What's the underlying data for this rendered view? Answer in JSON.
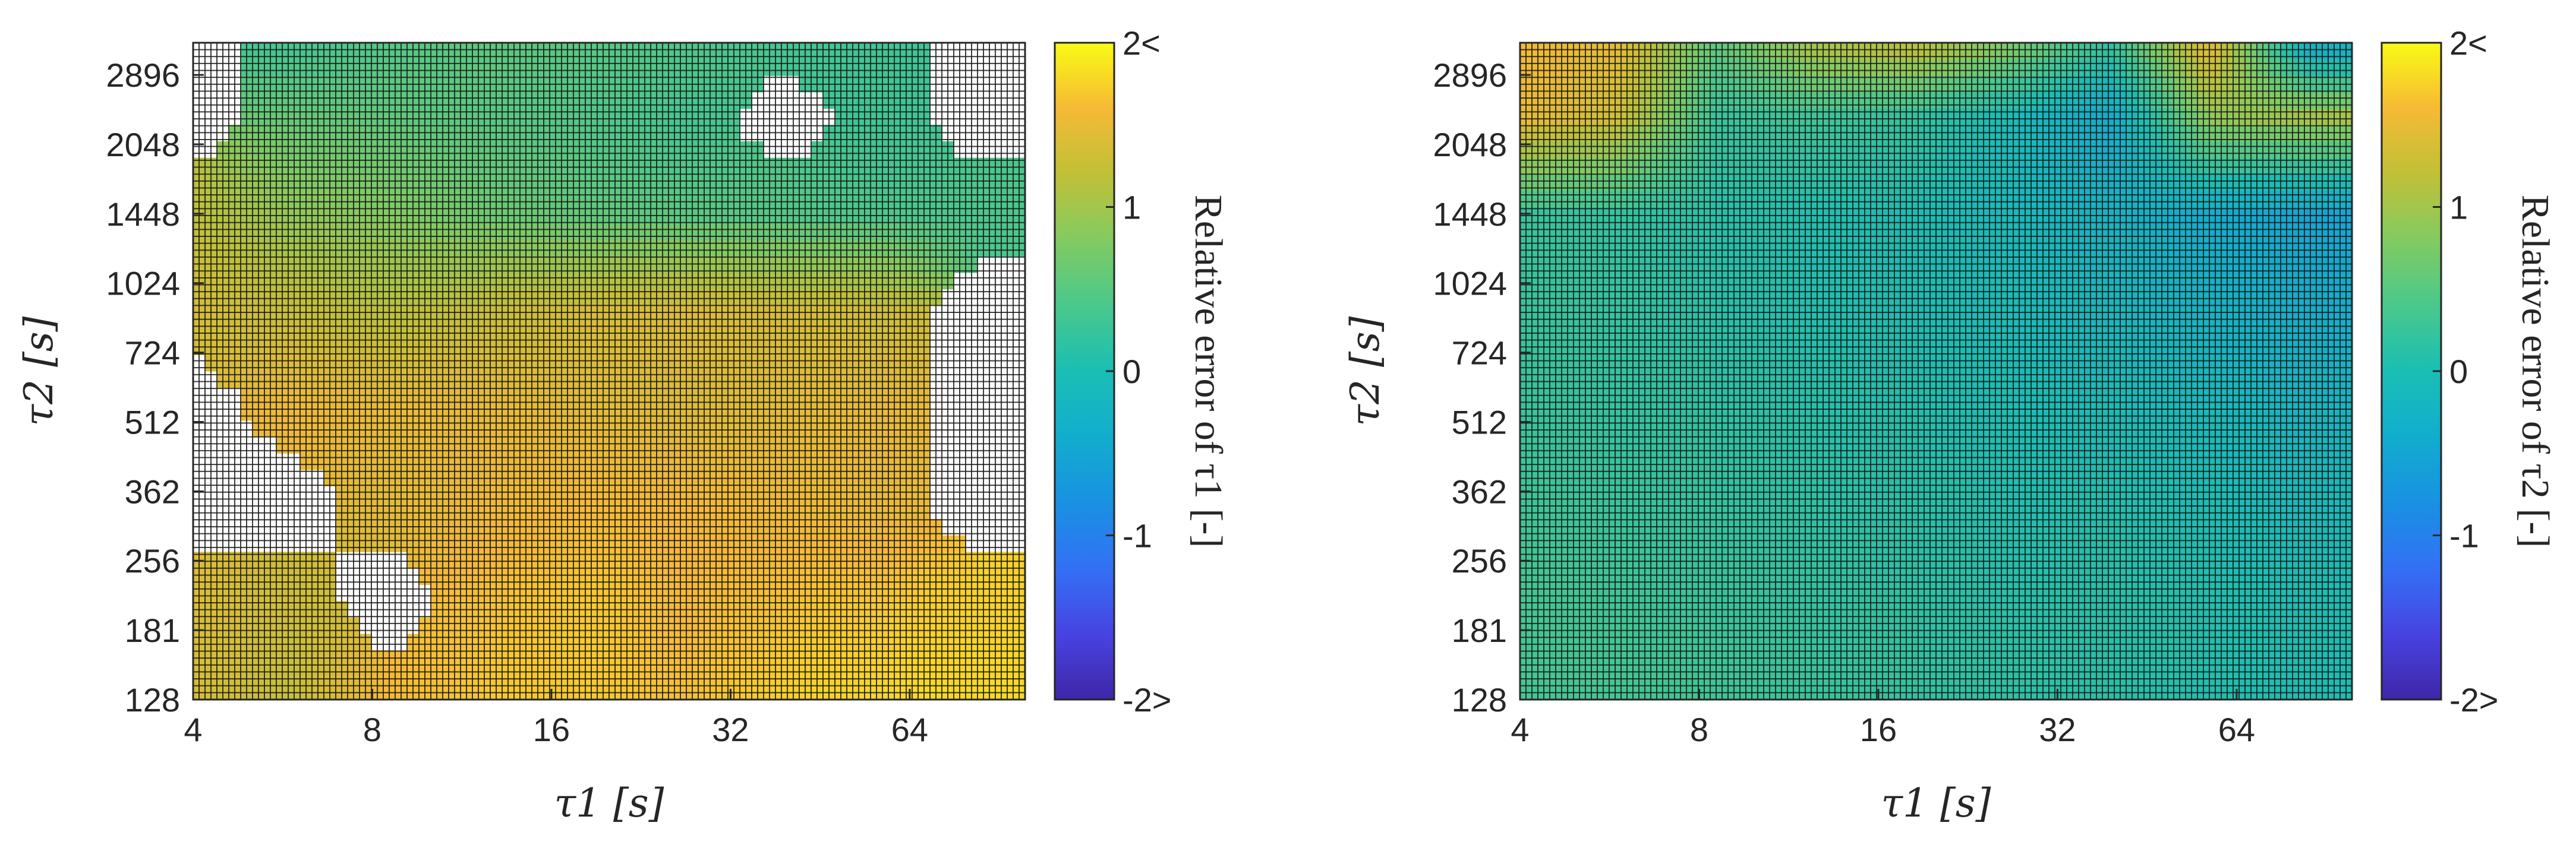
{
  "chart_data": [
    {
      "type": "heatmap",
      "panel": "left",
      "xlabel": "τ1 [s]",
      "ylabel": "τ2 [s]",
      "x_scale": "log2",
      "y_scale": "log2",
      "xlim": [
        4,
        100
      ],
      "ylim": [
        128,
        3400
      ],
      "x_ticks": [
        4,
        8,
        16,
        32,
        64
      ],
      "x_tick_labels": [
        "4",
        "8",
        "16",
        "32",
        "64"
      ],
      "y_ticks": [
        128,
        181,
        256,
        362,
        512,
        724,
        1024,
        1448,
        2048,
        2896
      ],
      "y_tick_labels": [
        "128",
        "181",
        "256",
        "362",
        "512",
        "724",
        "1024",
        "1448",
        "2048",
        "2896"
      ],
      "colorbar": {
        "label": "Relative error of τ1 [-]",
        "range": [
          -2,
          2
        ],
        "ticks": [
          2,
          1,
          0,
          -1,
          -2
        ],
        "tick_labels": [
          "2<",
          "1",
          "0",
          "-1",
          "-2>"
        ],
        "colormap": "parula"
      },
      "nan_color": "#ffffff",
      "grid_lines": true,
      "grid": {
        "log2_tau1": [
          2.0,
          2.55,
          3.1,
          3.65,
          4.2,
          4.75,
          5.3,
          5.85,
          6.4
        ],
        "log2_tau2": [
          7.0,
          7.7,
          8.4,
          9.1,
          9.8,
          10.5,
          11.2,
          11.8
        ],
        "values": [
          [
            1.35,
            1.25,
            1.6,
            1.7,
            1.7,
            1.65,
            1.75,
            1.8,
            1.8
          ],
          [
            1.4,
            1.3,
            null,
            1.65,
            1.7,
            1.6,
            1.65,
            1.7,
            1.75
          ],
          [
            null,
            null,
            1.45,
            1.55,
            1.6,
            1.6,
            1.55,
            1.5,
            null
          ],
          [
            null,
            1.55,
            1.5,
            1.5,
            1.45,
            1.4,
            1.45,
            1.5,
            null
          ],
          [
            1.35,
            1.25,
            1.15,
            1.25,
            1.35,
            1.4,
            1.35,
            1.3,
            null
          ],
          [
            1.2,
            0.9,
            0.8,
            0.65,
            0.55,
            0.5,
            0.45,
            0.4,
            0.4
          ],
          [
            null,
            0.6,
            0.55,
            0.5,
            0.45,
            0.35,
            null,
            0.3,
            null
          ],
          [
            null,
            0.3,
            0.45,
            0.55,
            0.5,
            0.45,
            0.35,
            0.3,
            null
          ]
        ]
      }
    },
    {
      "type": "heatmap",
      "panel": "right",
      "xlabel": "τ1 [s]",
      "ylabel": "τ2 [s]",
      "x_scale": "log2",
      "y_scale": "log2",
      "xlim": [
        4,
        100
      ],
      "ylim": [
        128,
        3400
      ],
      "x_ticks": [
        4,
        8,
        16,
        32,
        64
      ],
      "x_tick_labels": [
        "4",
        "8",
        "16",
        "32",
        "64"
      ],
      "y_ticks": [
        128,
        181,
        256,
        362,
        512,
        724,
        1024,
        1448,
        2048,
        2896
      ],
      "y_tick_labels": [
        "128",
        "181",
        "256",
        "362",
        "512",
        "724",
        "1024",
        "1448",
        "2048",
        "2896"
      ],
      "colorbar": {
        "label": "Relative error of τ2 [-]",
        "range": [
          -2,
          2
        ],
        "ticks": [
          2,
          1,
          0,
          -1,
          -2
        ],
        "tick_labels": [
          "2<",
          "1",
          "0",
          "-1",
          "-2>"
        ],
        "colormap": "parula"
      },
      "nan_color": "#ffffff",
      "grid_lines": true,
      "grid": {
        "log2_tau1": [
          2.0,
          2.55,
          3.1,
          3.65,
          4.2,
          4.75,
          5.3,
          5.85,
          6.4
        ],
        "log2_tau2": [
          7.0,
          7.7,
          8.4,
          9.1,
          9.8,
          10.5,
          11.2,
          11.8
        ],
        "values": [
          [
            0.35,
            0.35,
            0.3,
            0.25,
            0.2,
            0.15,
            0.1,
            0.05,
            0.0
          ],
          [
            0.35,
            0.3,
            0.25,
            0.2,
            0.15,
            0.1,
            0.1,
            0.05,
            0.0
          ],
          [
            0.3,
            0.25,
            0.2,
            0.15,
            0.1,
            0.05,
            0.05,
            0.0,
            -0.1
          ],
          [
            0.25,
            0.2,
            0.15,
            0.1,
            0.05,
            0.0,
            -0.05,
            -0.1,
            -0.2
          ],
          [
            0.25,
            0.2,
            0.1,
            0.05,
            0.0,
            -0.05,
            -0.15,
            -0.25,
            -0.35
          ],
          [
            0.25,
            0.2,
            0.1,
            0.05,
            0.0,
            -0.1,
            -0.25,
            -0.4,
            -0.5
          ],
          [
            1.5,
            1.3,
            0.25,
            0.3,
            0.2,
            -0.05,
            -0.4,
            0.9,
            1.0
          ],
          [
            1.6,
            1.5,
            0.6,
            1.2,
            1.4,
            0.9,
            0.3,
            1.6,
            -0.6
          ]
        ]
      }
    }
  ]
}
